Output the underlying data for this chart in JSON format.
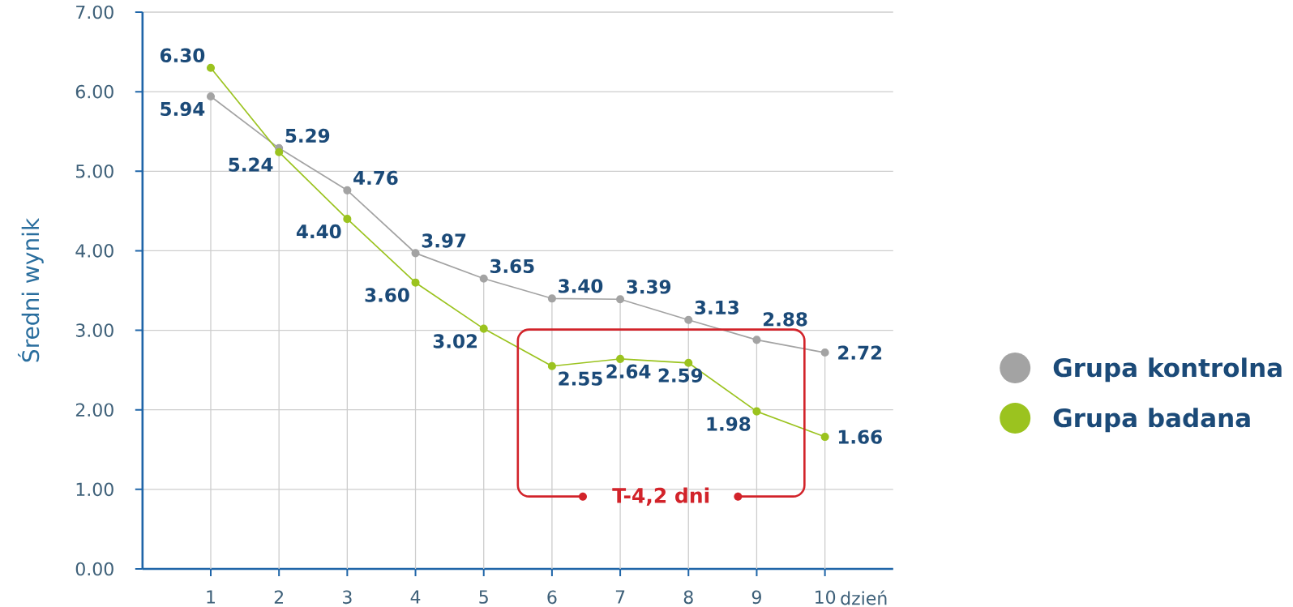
{
  "chart_data": {
    "type": "line",
    "ylabel": "Średni wynik",
    "xlabel": "dzień",
    "x": [
      1,
      2,
      3,
      4,
      5,
      6,
      7,
      8,
      9,
      10
    ],
    "series": [
      {
        "name": "Grupa kontrolna",
        "color": "#a3a3a3",
        "values": [
          5.94,
          5.29,
          4.76,
          3.97,
          3.65,
          3.4,
          3.39,
          3.13,
          2.88,
          2.72
        ],
        "value_labels": [
          "5.94",
          "5.29",
          "4.76",
          "3.97",
          "3.65",
          "3.40",
          "3.39",
          "3.13",
          "2.88",
          "2.72"
        ]
      },
      {
        "name": "Grupa badana",
        "color": "#9bc31f",
        "values": [
          6.3,
          5.24,
          4.4,
          3.6,
          3.02,
          2.55,
          2.64,
          2.59,
          1.98,
          1.66
        ],
        "value_labels": [
          "6.30",
          "5.24",
          "4.40",
          "3.60",
          "3.02",
          "2.55",
          "2.64",
          "2.59",
          "1.98",
          "1.66"
        ]
      }
    ],
    "xlim": [
      0,
      11
    ],
    "xticks": [
      1,
      2,
      3,
      4,
      5,
      6,
      7,
      8,
      9,
      10
    ],
    "ylim": [
      0,
      7
    ],
    "yticks": [
      {
        "value": 0,
        "label": "0.00"
      },
      {
        "value": 1,
        "label": "1.00"
      },
      {
        "value": 2,
        "label": "2.00"
      },
      {
        "value": 3,
        "label": "3.00"
      },
      {
        "value": 4,
        "label": "4.00"
      },
      {
        "value": 5,
        "label": "5.00"
      },
      {
        "value": 6,
        "label": "6.00"
      },
      {
        "value": 7,
        "label": "7.00"
      }
    ],
    "grid": true,
    "legend": "right",
    "marker": "circle",
    "line_style": "solid",
    "annotations": [
      "T-4,2 dni"
    ]
  }
}
